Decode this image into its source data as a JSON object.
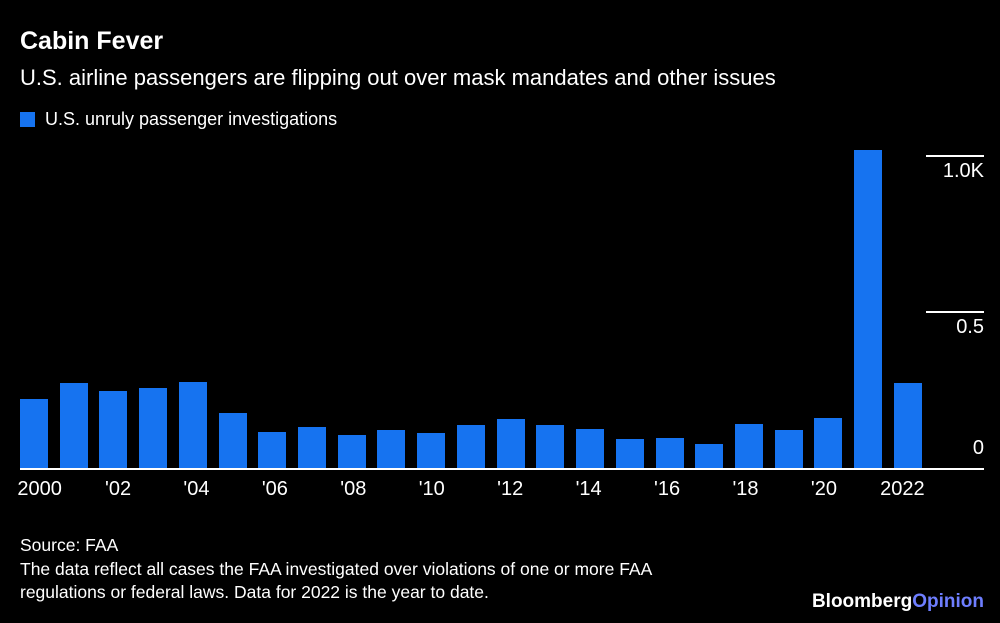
{
  "header": {
    "title": "Cabin Fever",
    "subtitle": "U.S. airline passengers are flipping out over mask mandates and other issues"
  },
  "legend": {
    "label": "U.S. unruly passenger investigations",
    "color": "#1673f0"
  },
  "chart_data": {
    "type": "bar",
    "title": "Cabin Fever",
    "subtitle": "U.S. airline passengers are flipping out over mask mandates and other issues",
    "series_name": "U.S. unruly passenger investigations",
    "categories": [
      2000,
      2001,
      2002,
      2003,
      2004,
      2005,
      2006,
      2007,
      2008,
      2009,
      2010,
      2011,
      2012,
      2013,
      2014,
      2015,
      2016,
      2017,
      2018,
      2019,
      2020,
      2021,
      2022
    ],
    "values": [
      220,
      270,
      245,
      255,
      275,
      175,
      115,
      130,
      105,
      120,
      110,
      135,
      155,
      135,
      125,
      90,
      95,
      75,
      140,
      120,
      160,
      1020,
      270
    ],
    "bar_color": "#1673f0",
    "background_color": "#000000",
    "ylim": [
      0,
      1040
    ],
    "grid": "off",
    "legend_position": "top-left",
    "y_ticks": [
      {
        "value": 1000,
        "label": "1.0K",
        "line": true,
        "label_position": "below"
      },
      {
        "value": 500,
        "label": "0.5",
        "line": true,
        "label_position": "below"
      },
      {
        "value": 0,
        "label": "0",
        "line": false,
        "label_position": "above"
      }
    ],
    "x_ticks": [
      {
        "index": 0,
        "label": "2000"
      },
      {
        "index": 2,
        "label": "'02"
      },
      {
        "index": 4,
        "label": "'04"
      },
      {
        "index": 6,
        "label": "'06"
      },
      {
        "index": 8,
        "label": "'08"
      },
      {
        "index": 10,
        "label": "'10"
      },
      {
        "index": 12,
        "label": "'12"
      },
      {
        "index": 14,
        "label": "'14"
      },
      {
        "index": 16,
        "label": "'16"
      },
      {
        "index": 18,
        "label": "'18"
      },
      {
        "index": 20,
        "label": "'20"
      },
      {
        "index": 22,
        "label": "2022"
      }
    ]
  },
  "footer": {
    "source": "Source: FAA",
    "note_lines": [
      "The data reflect all cases the FAA investigated over violations of one or more FAA",
      "regulations or federal laws. Data for 2022 is the year to date."
    ],
    "logo": {
      "primary": "Bloomberg",
      "secondary": "Opinion",
      "secondary_color": "#6e7eff"
    }
  }
}
